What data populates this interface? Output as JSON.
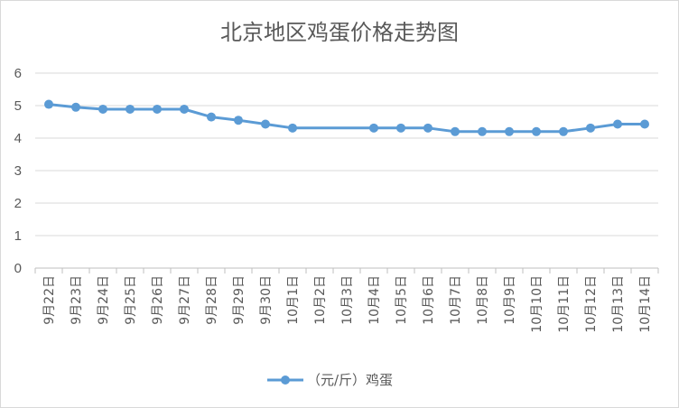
{
  "chart_data": {
    "type": "line",
    "title": "北京地区鸡蛋价格走势图",
    "xlabel": "",
    "ylabel": "",
    "ylim": [
      0,
      6
    ],
    "yticks": [
      0,
      1,
      2,
      3,
      4,
      5,
      6
    ],
    "grid": true,
    "legend_position": "bottom",
    "categories": [
      "9月22日",
      "9月23日",
      "9月24日",
      "9月25日",
      "9月26日",
      "9月27日",
      "9月28日",
      "9月29日",
      "9月30日",
      "10月1日",
      "10月2日",
      "10月3日",
      "10月4日",
      "10月5日",
      "10月6日",
      "10月7日",
      "10月8日",
      "10月9日",
      "10月10日",
      "10月11日",
      "10月12日",
      "10月13日",
      "10月14日"
    ],
    "series": [
      {
        "name": "（元/斤）鸡蛋",
        "color": "#5b9bd5",
        "values": [
          5.04,
          4.95,
          4.89,
          4.89,
          4.89,
          4.89,
          4.65,
          4.55,
          4.43,
          4.31,
          null,
          null,
          4.31,
          4.31,
          4.31,
          4.2,
          4.2,
          4.2,
          4.2,
          4.2,
          4.31,
          4.43,
          4.43
        ]
      }
    ]
  }
}
